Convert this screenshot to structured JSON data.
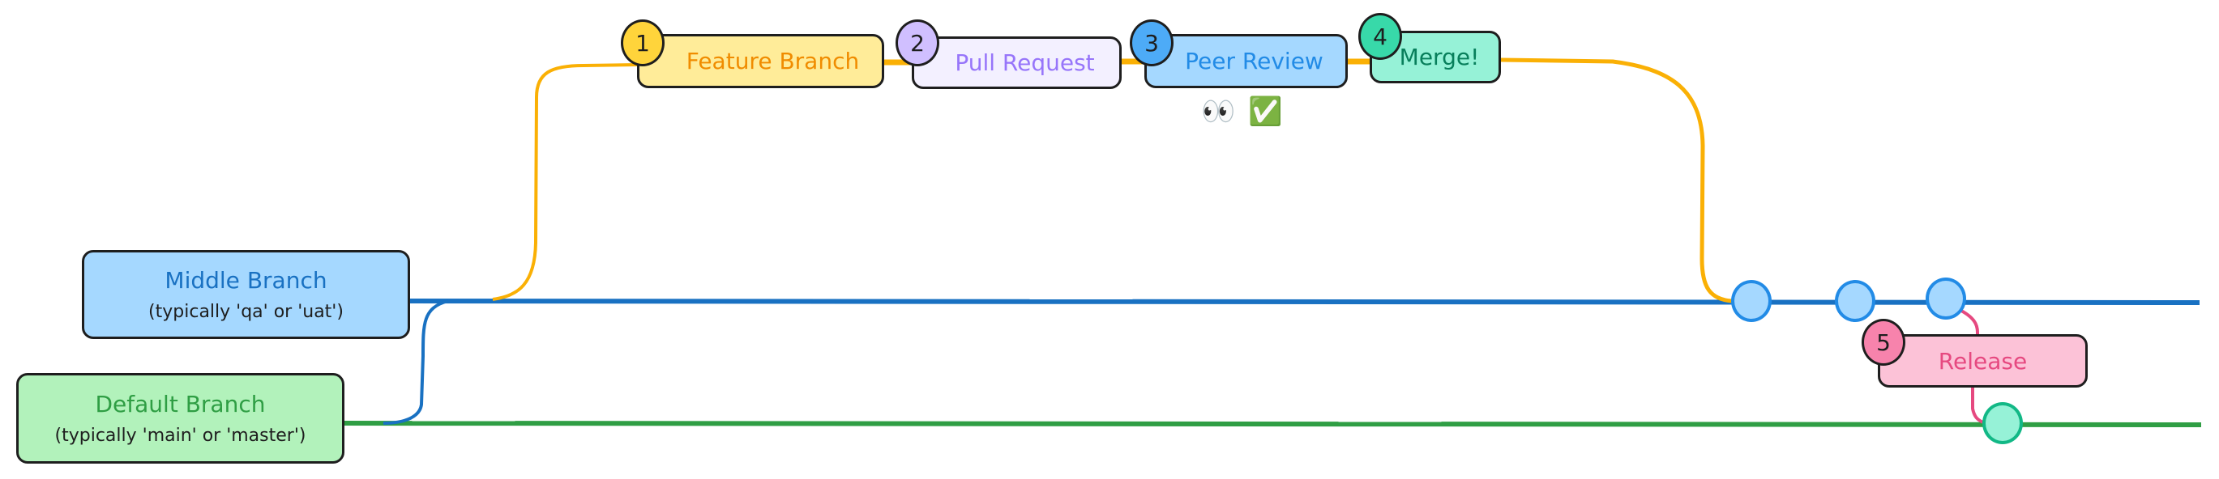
{
  "branches": {
    "middle": {
      "title": "Middle Branch",
      "subtitle": "(typically 'qa' or 'uat')",
      "color": "#1971c2",
      "fill": "#a5d8ff"
    },
    "default": {
      "title": "Default Branch",
      "subtitle": "(typically 'main' or 'master')",
      "color": "#2f9e44",
      "fill": "#b2f2bb"
    }
  },
  "steps": [
    {
      "number": "1",
      "label": "Feature Branch",
      "color": "#f08c00",
      "fill": "#ffec99",
      "badge": "#ffd43b"
    },
    {
      "number": "2",
      "label": "Pull Request",
      "color": "#9775fa",
      "fill": "#f3f0ff",
      "badge": "#d0bfff"
    },
    {
      "number": "3",
      "label": "Peer Review",
      "color": "#228be6",
      "fill": "#a5d8ff",
      "badge": "#4dabf7"
    },
    {
      "number": "4",
      "label": "Merge!",
      "color": "#087f5b",
      "fill": "#96f2d7",
      "badge": "#38d9a9"
    },
    {
      "number": "5",
      "label": "Release",
      "color": "#e64980",
      "fill": "#fcc2d7",
      "badge": "#f783ac"
    }
  ],
  "review_emojis": {
    "eyes": "👀",
    "check": "✅"
  },
  "feature_line_color": "#fab005"
}
